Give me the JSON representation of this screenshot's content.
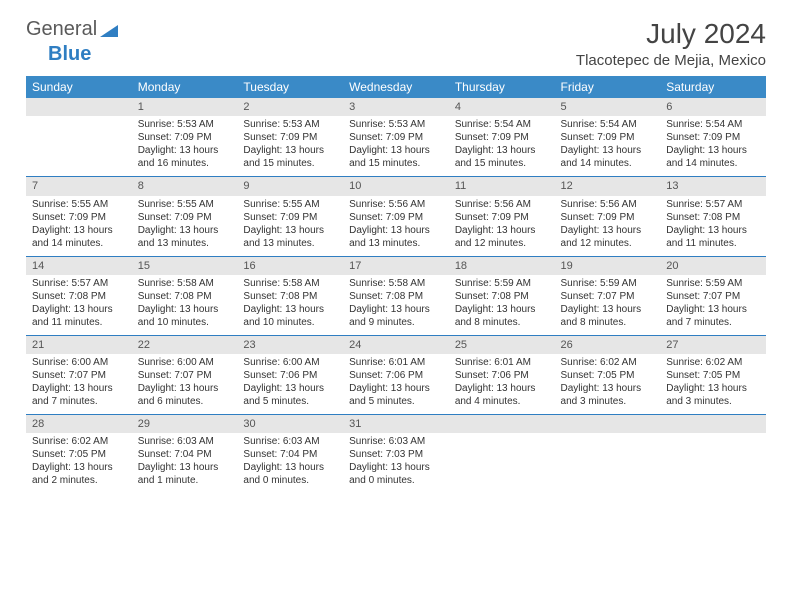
{
  "logo": {
    "word1": "General",
    "word2": "Blue"
  },
  "title": "July 2024",
  "location": "Tlacotepec de Mejia, Mexico",
  "colors": {
    "header_bg": "#3a8ac7",
    "header_text": "#ffffff",
    "daynum_bg": "#e6e6e6",
    "row_border": "#2f7ec2",
    "text": "#333333",
    "logo_gray": "#5a5a5a",
    "logo_blue": "#2f7ec2"
  },
  "weekdays": [
    "Sunday",
    "Monday",
    "Tuesday",
    "Wednesday",
    "Thursday",
    "Friday",
    "Saturday"
  ],
  "weeks": [
    [
      {
        "num": "",
        "sunrise": "",
        "sunset": "",
        "daylight1": "",
        "daylight2": ""
      },
      {
        "num": "1",
        "sunrise": "Sunrise: 5:53 AM",
        "sunset": "Sunset: 7:09 PM",
        "daylight1": "Daylight: 13 hours",
        "daylight2": "and 16 minutes."
      },
      {
        "num": "2",
        "sunrise": "Sunrise: 5:53 AM",
        "sunset": "Sunset: 7:09 PM",
        "daylight1": "Daylight: 13 hours",
        "daylight2": "and 15 minutes."
      },
      {
        "num": "3",
        "sunrise": "Sunrise: 5:53 AM",
        "sunset": "Sunset: 7:09 PM",
        "daylight1": "Daylight: 13 hours",
        "daylight2": "and 15 minutes."
      },
      {
        "num": "4",
        "sunrise": "Sunrise: 5:54 AM",
        "sunset": "Sunset: 7:09 PM",
        "daylight1": "Daylight: 13 hours",
        "daylight2": "and 15 minutes."
      },
      {
        "num": "5",
        "sunrise": "Sunrise: 5:54 AM",
        "sunset": "Sunset: 7:09 PM",
        "daylight1": "Daylight: 13 hours",
        "daylight2": "and 14 minutes."
      },
      {
        "num": "6",
        "sunrise": "Sunrise: 5:54 AM",
        "sunset": "Sunset: 7:09 PM",
        "daylight1": "Daylight: 13 hours",
        "daylight2": "and 14 minutes."
      }
    ],
    [
      {
        "num": "7",
        "sunrise": "Sunrise: 5:55 AM",
        "sunset": "Sunset: 7:09 PM",
        "daylight1": "Daylight: 13 hours",
        "daylight2": "and 14 minutes."
      },
      {
        "num": "8",
        "sunrise": "Sunrise: 5:55 AM",
        "sunset": "Sunset: 7:09 PM",
        "daylight1": "Daylight: 13 hours",
        "daylight2": "and 13 minutes."
      },
      {
        "num": "9",
        "sunrise": "Sunrise: 5:55 AM",
        "sunset": "Sunset: 7:09 PM",
        "daylight1": "Daylight: 13 hours",
        "daylight2": "and 13 minutes."
      },
      {
        "num": "10",
        "sunrise": "Sunrise: 5:56 AM",
        "sunset": "Sunset: 7:09 PM",
        "daylight1": "Daylight: 13 hours",
        "daylight2": "and 13 minutes."
      },
      {
        "num": "11",
        "sunrise": "Sunrise: 5:56 AM",
        "sunset": "Sunset: 7:09 PM",
        "daylight1": "Daylight: 13 hours",
        "daylight2": "and 12 minutes."
      },
      {
        "num": "12",
        "sunrise": "Sunrise: 5:56 AM",
        "sunset": "Sunset: 7:09 PM",
        "daylight1": "Daylight: 13 hours",
        "daylight2": "and 12 minutes."
      },
      {
        "num": "13",
        "sunrise": "Sunrise: 5:57 AM",
        "sunset": "Sunset: 7:08 PM",
        "daylight1": "Daylight: 13 hours",
        "daylight2": "and 11 minutes."
      }
    ],
    [
      {
        "num": "14",
        "sunrise": "Sunrise: 5:57 AM",
        "sunset": "Sunset: 7:08 PM",
        "daylight1": "Daylight: 13 hours",
        "daylight2": "and 11 minutes."
      },
      {
        "num": "15",
        "sunrise": "Sunrise: 5:58 AM",
        "sunset": "Sunset: 7:08 PM",
        "daylight1": "Daylight: 13 hours",
        "daylight2": "and 10 minutes."
      },
      {
        "num": "16",
        "sunrise": "Sunrise: 5:58 AM",
        "sunset": "Sunset: 7:08 PM",
        "daylight1": "Daylight: 13 hours",
        "daylight2": "and 10 minutes."
      },
      {
        "num": "17",
        "sunrise": "Sunrise: 5:58 AM",
        "sunset": "Sunset: 7:08 PM",
        "daylight1": "Daylight: 13 hours",
        "daylight2": "and 9 minutes."
      },
      {
        "num": "18",
        "sunrise": "Sunrise: 5:59 AM",
        "sunset": "Sunset: 7:08 PM",
        "daylight1": "Daylight: 13 hours",
        "daylight2": "and 8 minutes."
      },
      {
        "num": "19",
        "sunrise": "Sunrise: 5:59 AM",
        "sunset": "Sunset: 7:07 PM",
        "daylight1": "Daylight: 13 hours",
        "daylight2": "and 8 minutes."
      },
      {
        "num": "20",
        "sunrise": "Sunrise: 5:59 AM",
        "sunset": "Sunset: 7:07 PM",
        "daylight1": "Daylight: 13 hours",
        "daylight2": "and 7 minutes."
      }
    ],
    [
      {
        "num": "21",
        "sunrise": "Sunrise: 6:00 AM",
        "sunset": "Sunset: 7:07 PM",
        "daylight1": "Daylight: 13 hours",
        "daylight2": "and 7 minutes."
      },
      {
        "num": "22",
        "sunrise": "Sunrise: 6:00 AM",
        "sunset": "Sunset: 7:07 PM",
        "daylight1": "Daylight: 13 hours",
        "daylight2": "and 6 minutes."
      },
      {
        "num": "23",
        "sunrise": "Sunrise: 6:00 AM",
        "sunset": "Sunset: 7:06 PM",
        "daylight1": "Daylight: 13 hours",
        "daylight2": "and 5 minutes."
      },
      {
        "num": "24",
        "sunrise": "Sunrise: 6:01 AM",
        "sunset": "Sunset: 7:06 PM",
        "daylight1": "Daylight: 13 hours",
        "daylight2": "and 5 minutes."
      },
      {
        "num": "25",
        "sunrise": "Sunrise: 6:01 AM",
        "sunset": "Sunset: 7:06 PM",
        "daylight1": "Daylight: 13 hours",
        "daylight2": "and 4 minutes."
      },
      {
        "num": "26",
        "sunrise": "Sunrise: 6:02 AM",
        "sunset": "Sunset: 7:05 PM",
        "daylight1": "Daylight: 13 hours",
        "daylight2": "and 3 minutes."
      },
      {
        "num": "27",
        "sunrise": "Sunrise: 6:02 AM",
        "sunset": "Sunset: 7:05 PM",
        "daylight1": "Daylight: 13 hours",
        "daylight2": "and 3 minutes."
      }
    ],
    [
      {
        "num": "28",
        "sunrise": "Sunrise: 6:02 AM",
        "sunset": "Sunset: 7:05 PM",
        "daylight1": "Daylight: 13 hours",
        "daylight2": "and 2 minutes."
      },
      {
        "num": "29",
        "sunrise": "Sunrise: 6:03 AM",
        "sunset": "Sunset: 7:04 PM",
        "daylight1": "Daylight: 13 hours",
        "daylight2": "and 1 minute."
      },
      {
        "num": "30",
        "sunrise": "Sunrise: 6:03 AM",
        "sunset": "Sunset: 7:04 PM",
        "daylight1": "Daylight: 13 hours",
        "daylight2": "and 0 minutes."
      },
      {
        "num": "31",
        "sunrise": "Sunrise: 6:03 AM",
        "sunset": "Sunset: 7:03 PM",
        "daylight1": "Daylight: 13 hours",
        "daylight2": "and 0 minutes."
      },
      {
        "num": "",
        "sunrise": "",
        "sunset": "",
        "daylight1": "",
        "daylight2": ""
      },
      {
        "num": "",
        "sunrise": "",
        "sunset": "",
        "daylight1": "",
        "daylight2": ""
      },
      {
        "num": "",
        "sunrise": "",
        "sunset": "",
        "daylight1": "",
        "daylight2": ""
      }
    ]
  ]
}
